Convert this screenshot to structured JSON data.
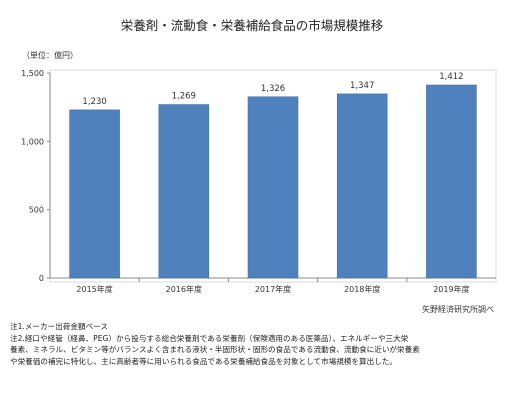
{
  "chart_data": {
    "type": "bar",
    "title": "栄養剤・流動食・栄養補給食品の市場規模推移",
    "unit_label": "（単位：億円）",
    "categories": [
      "2015年度",
      "2016年度",
      "2017年度",
      "2018年度",
      "2019年度"
    ],
    "values": [
      1230,
      1269,
      1326,
      1347,
      1412
    ],
    "data_labels": [
      "1,230",
      "1,269",
      "1,326",
      "1,347",
      "1,412"
    ],
    "yticks": [
      "0",
      "500",
      "1,000",
      "1,500"
    ],
    "ylim": [
      0,
      1500
    ],
    "grid": false,
    "bar_color": "#4f81bd",
    "source": "矢野経済研究所調べ"
  },
  "notes": [
    "注1.メーカー出荷金額ベース",
    "注2.経口や経管（経鼻、PEG）から投与する総合栄養剤である栄養剤（保険適用のある医薬品）、エネルギーや三大栄",
    "養素、ミネラル、ビタミン等がバランスよく含まれる液状・半固形状・固形の食品である流動食、流動食に近いが栄養素",
    "や栄養価の補完に特化し、主に高齢者等に用いられる食品である栄養補給食品を対象として市場規模を算出した。"
  ]
}
